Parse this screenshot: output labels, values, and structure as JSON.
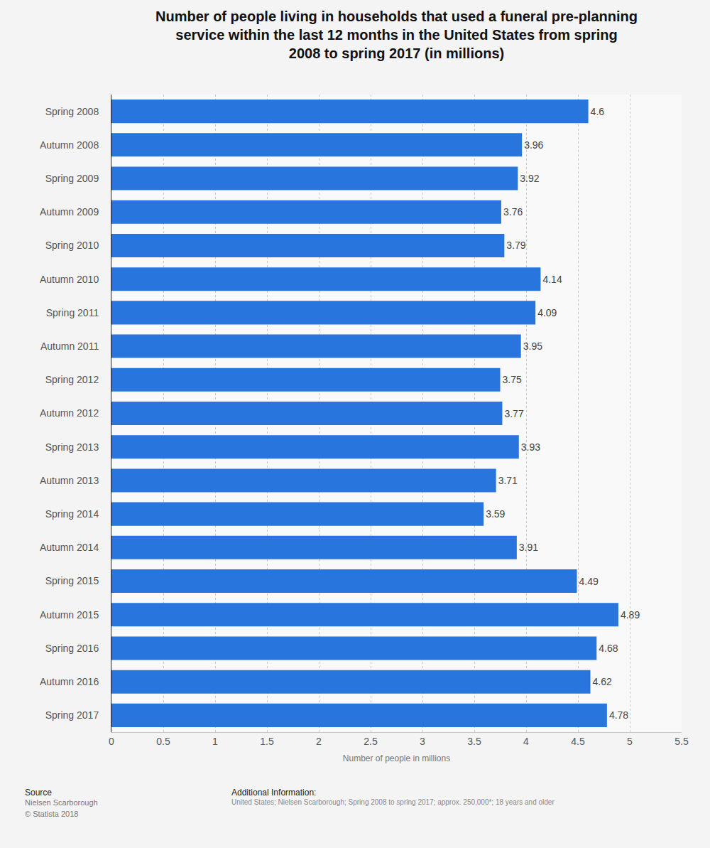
{
  "chart_data": {
    "type": "bar",
    "orientation": "horizontal",
    "title": "Number of people living in households that used a funeral pre-planning service within the last 12 months in the United States from spring 2008 to spring 2017 (in millions)",
    "x_label": "Number of people in millions",
    "categories": [
      "Spring 2008",
      "Autumn 2008",
      "Spring 2009",
      "Autumn 2009",
      "Spring 2010",
      "Autumn 2010",
      "Spring 2011",
      "Autumn 2011",
      "Spring 2012",
      "Autumn 2012",
      "Spring 2013",
      "Autumn 2013",
      "Spring 2014",
      "Autumn 2014",
      "Spring 2015",
      "Autumn 2015",
      "Spring 2016",
      "Autumn 2016",
      "Spring 2017"
    ],
    "values": [
      4.6,
      3.96,
      3.92,
      3.76,
      3.79,
      4.14,
      4.09,
      3.95,
      3.75,
      3.77,
      3.93,
      3.71,
      3.59,
      3.91,
      4.49,
      4.89,
      4.68,
      4.62,
      4.78
    ],
    "color": "#2876dd",
    "xlim": [
      0,
      5.5
    ],
    "xticks": [
      0,
      0.5,
      1,
      1.5,
      2,
      2.5,
      3,
      3.5,
      4,
      4.5,
      5,
      5.5
    ],
    "grid": true,
    "data_labels": true,
    "annotations": [
      "Source",
      "Nielsen Scarborough",
      "© Statista 2018",
      "Additional Information:",
      "United States; Nielsen Scarborough; Spring 2008 to spring 2017; approx. 250,000*; 18 years and older"
    ]
  }
}
